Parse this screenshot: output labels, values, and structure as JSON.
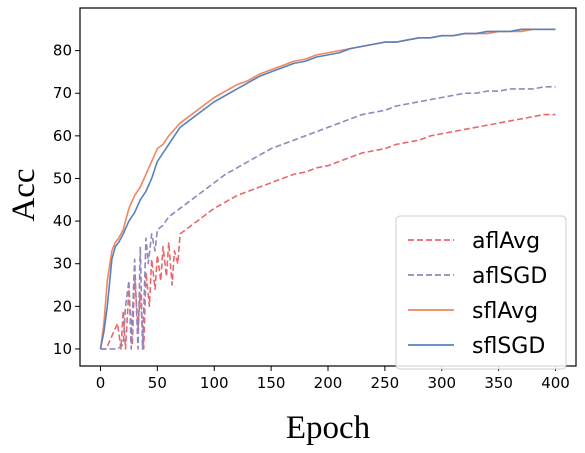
{
  "chart_data": {
    "type": "line",
    "title": "",
    "xlabel": "Epoch",
    "ylabel": "Acc",
    "xlim": [
      -18,
      418
    ],
    "ylim": [
      6,
      90
    ],
    "xticks": [
      0,
      50,
      100,
      150,
      200,
      250,
      300,
      350,
      400
    ],
    "yticks": [
      10,
      20,
      30,
      40,
      50,
      60,
      70,
      80
    ],
    "grid": false,
    "legend_position": "lower-right",
    "series": [
      {
        "name": "aflAvg",
        "color": "#e8686b",
        "dash": "dashed",
        "x": [
          0,
          5,
          10,
          15,
          18,
          20,
          22,
          25,
          28,
          30,
          33,
          35,
          38,
          40,
          43,
          45,
          48,
          50,
          53,
          55,
          58,
          60,
          63,
          65,
          68,
          70,
          75,
          80,
          85,
          90,
          95,
          100,
          110,
          120,
          130,
          140,
          150,
          160,
          170,
          180,
          190,
          200,
          210,
          220,
          230,
          240,
          250,
          260,
          270,
          280,
          290,
          300,
          310,
          320,
          330,
          340,
          350,
          360,
          370,
          380,
          390,
          400
        ],
        "y": [
          10,
          10,
          13,
          16,
          10,
          19,
          10,
          24,
          11,
          27,
          15,
          23,
          10,
          28,
          20,
          31,
          24,
          32,
          26,
          34,
          27,
          35,
          25,
          33,
          30,
          37,
          38,
          39,
          40,
          41,
          42,
          43,
          44.5,
          46,
          47,
          48,
          49,
          50,
          51,
          51.5,
          52.5,
          53,
          54,
          55,
          56,
          56.5,
          57,
          58,
          58.5,
          59,
          60,
          60.5,
          61,
          61.5,
          62,
          62.5,
          63,
          63.5,
          64,
          64.5,
          65,
          65
        ]
      },
      {
        "name": "aflSGD",
        "color": "#9287bb",
        "dash": "dashed",
        "x": [
          0,
          5,
          10,
          15,
          20,
          22,
          25,
          27,
          30,
          33,
          35,
          37,
          40,
          42,
          45,
          48,
          50,
          55,
          60,
          65,
          70,
          75,
          80,
          85,
          90,
          95,
          100,
          110,
          120,
          130,
          140,
          150,
          160,
          170,
          180,
          190,
          200,
          210,
          220,
          230,
          240,
          250,
          260,
          270,
          280,
          290,
          300,
          310,
          320,
          330,
          340,
          350,
          360,
          370,
          380,
          390,
          400
        ],
        "y": [
          10,
          10,
          10,
          10,
          11,
          20,
          26,
          10,
          31,
          10,
          34,
          10,
          36,
          30,
          37,
          33,
          38,
          39,
          41,
          42,
          43,
          44,
          45,
          46,
          47,
          48,
          49,
          51,
          52.5,
          54,
          55.5,
          57,
          58,
          59,
          60,
          61,
          62,
          63,
          64,
          65,
          65.5,
          66,
          67,
          67.5,
          68,
          68.5,
          69,
          69.5,
          70,
          70,
          70.5,
          70.5,
          71,
          71,
          71,
          71.5,
          71.5
        ]
      },
      {
        "name": "sflAvg",
        "color": "#f0875e",
        "dash": "solid",
        "x": [
          0,
          3,
          6,
          10,
          13,
          16,
          20,
          25,
          30,
          35,
          40,
          45,
          50,
          55,
          60,
          70,
          80,
          90,
          100,
          110,
          120,
          130,
          140,
          150,
          160,
          170,
          180,
          190,
          200,
          210,
          220,
          230,
          240,
          250,
          260,
          270,
          280,
          290,
          300,
          310,
          320,
          330,
          340,
          350,
          360,
          370,
          380,
          390,
          400
        ],
        "y": [
          10,
          16,
          26,
          33,
          35,
          36,
          38,
          43,
          46,
          48,
          51,
          54,
          57,
          58,
          60,
          63,
          65,
          67,
          69,
          70.5,
          72,
          73,
          74.5,
          75.5,
          76.5,
          77.5,
          78,
          79,
          79.5,
          80,
          80.5,
          81,
          81.5,
          82,
          82,
          82.5,
          83,
          83,
          83.5,
          83.5,
          84,
          84,
          84,
          84.5,
          84.5,
          84.5,
          85,
          85,
          85
        ]
      },
      {
        "name": "sflSGD",
        "color": "#5882bb",
        "dash": "solid",
        "x": [
          0,
          3,
          6,
          10,
          13,
          16,
          20,
          25,
          30,
          35,
          40,
          45,
          50,
          55,
          60,
          70,
          80,
          90,
          100,
          110,
          120,
          130,
          140,
          150,
          160,
          170,
          180,
          190,
          200,
          210,
          220,
          230,
          240,
          250,
          260,
          270,
          280,
          290,
          300,
          310,
          320,
          330,
          340,
          350,
          360,
          370,
          380,
          390,
          400
        ],
        "y": [
          10,
          14,
          20,
          31,
          34,
          35,
          37,
          40,
          42,
          45,
          47,
          50,
          54,
          56,
          58,
          62,
          64,
          66,
          68,
          69.5,
          71,
          72.5,
          74,
          75,
          76,
          77,
          77.5,
          78.5,
          79,
          79.5,
          80.5,
          81,
          81.5,
          82,
          82,
          82.5,
          83,
          83,
          83.5,
          83.5,
          84,
          84,
          84.5,
          84.5,
          84.5,
          85,
          85,
          85,
          85
        ]
      }
    ]
  }
}
